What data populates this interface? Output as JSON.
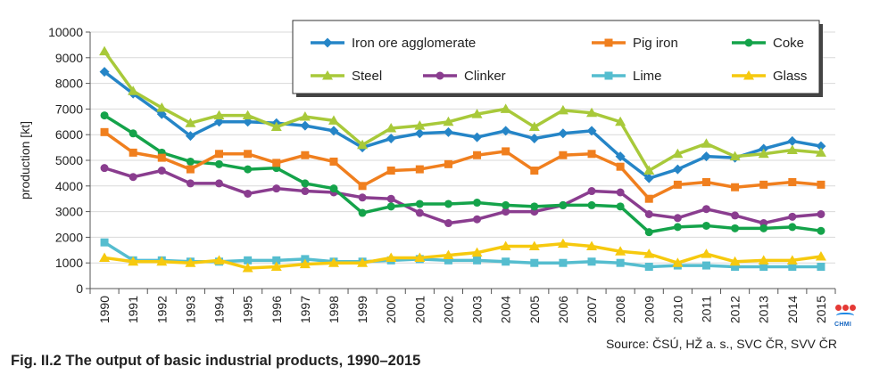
{
  "caption": "Fig. II.2  The output of basic industrial products, 1990–2015",
  "source": "Source: ČSÚ, HŽ a. s., SVC ČR, SVV ČR",
  "logo_text": "CHMI",
  "chart_data": {
    "type": "line",
    "title": "",
    "xlabel": "",
    "ylabel": "production [kt]",
    "ylim": [
      0,
      10000
    ],
    "yticks": [
      0,
      1000,
      2000,
      3000,
      4000,
      5000,
      6000,
      7000,
      8000,
      9000,
      10000
    ],
    "grid": "horizontal",
    "legend_position": "top-right",
    "categories": [
      "1990",
      "1991",
      "1992",
      "1993",
      "1994",
      "1995",
      "1996",
      "1997",
      "1998",
      "1999",
      "2000",
      "2001",
      "2002",
      "2003",
      "2004",
      "2005",
      "2006",
      "2007",
      "2008",
      "2009",
      "2010",
      "2011",
      "2012",
      "2013",
      "2014",
      "2015"
    ],
    "series": [
      {
        "name": "Iron ore agglomerate",
        "color": "#2585c7",
        "marker": "diamond",
        "values": [
          8450,
          7600,
          6800,
          5950,
          6500,
          6500,
          6450,
          6350,
          6150,
          5500,
          5850,
          6050,
          6100,
          5900,
          6150,
          5850,
          6050,
          6150,
          5150,
          4300,
          4650,
          5150,
          5100,
          5450,
          5750,
          5550
        ]
      },
      {
        "name": "Pig iron",
        "color": "#f07f1e",
        "marker": "square",
        "values": [
          6100,
          5300,
          5100,
          4650,
          5250,
          5250,
          4900,
          5200,
          4950,
          4000,
          4600,
          4650,
          4850,
          5200,
          5350,
          4600,
          5200,
          5250,
          4750,
          3500,
          4050,
          4150,
          3950,
          4050,
          4150,
          4050
        ]
      },
      {
        "name": "Coke",
        "color": "#14a34a",
        "marker": "circle",
        "values": [
          6750,
          6050,
          5300,
          4950,
          4850,
          4650,
          4700,
          4100,
          3900,
          2950,
          3200,
          3300,
          3300,
          3350,
          3250,
          3200,
          3250,
          3250,
          3200,
          2200,
          2400,
          2450,
          2350,
          2350,
          2400,
          2250
        ]
      },
      {
        "name": "Steel",
        "color": "#a8c93a",
        "marker": "triangle",
        "values": [
          9250,
          7700,
          7050,
          6450,
          6750,
          6750,
          6300,
          6700,
          6550,
          5600,
          6250,
          6350,
          6500,
          6800,
          7000,
          6300,
          6950,
          6850,
          6500,
          4600,
          5250,
          5650,
          5150,
          5250,
          5400,
          5300
        ]
      },
      {
        "name": "Clinker",
        "color": "#8a3d8f",
        "marker": "circle",
        "values": [
          4700,
          4350,
          4600,
          4100,
          4100,
          3700,
          3900,
          3800,
          3750,
          3550,
          3500,
          2950,
          2550,
          2700,
          3000,
          3000,
          3250,
          3800,
          3750,
          2900,
          2750,
          3100,
          2850,
          2550,
          2800,
          2900
        ]
      },
      {
        "name": "Lime",
        "color": "#55bdcf",
        "marker": "square",
        "values": [
          1800,
          1100,
          1100,
          1050,
          1050,
          1100,
          1100,
          1150,
          1050,
          1050,
          1100,
          1150,
          1100,
          1100,
          1050,
          1000,
          1000,
          1050,
          1000,
          850,
          900,
          900,
          850,
          850,
          850,
          850
        ]
      },
      {
        "name": "Glass",
        "color": "#f6c90e",
        "marker": "triangle",
        "values": [
          1200,
          1050,
          1050,
          1000,
          1100,
          800,
          850,
          950,
          1000,
          1000,
          1200,
          1200,
          1300,
          1400,
          1650,
          1650,
          1750,
          1650,
          1450,
          1350,
          1000,
          1350,
          1050,
          1100,
          1100,
          1250
        ]
      }
    ],
    "legend_layout": [
      [
        "Iron ore agglomerate",
        "Pig iron",
        "Coke"
      ],
      [
        "Steel",
        "Clinker",
        "Lime",
        "Glass"
      ]
    ]
  }
}
